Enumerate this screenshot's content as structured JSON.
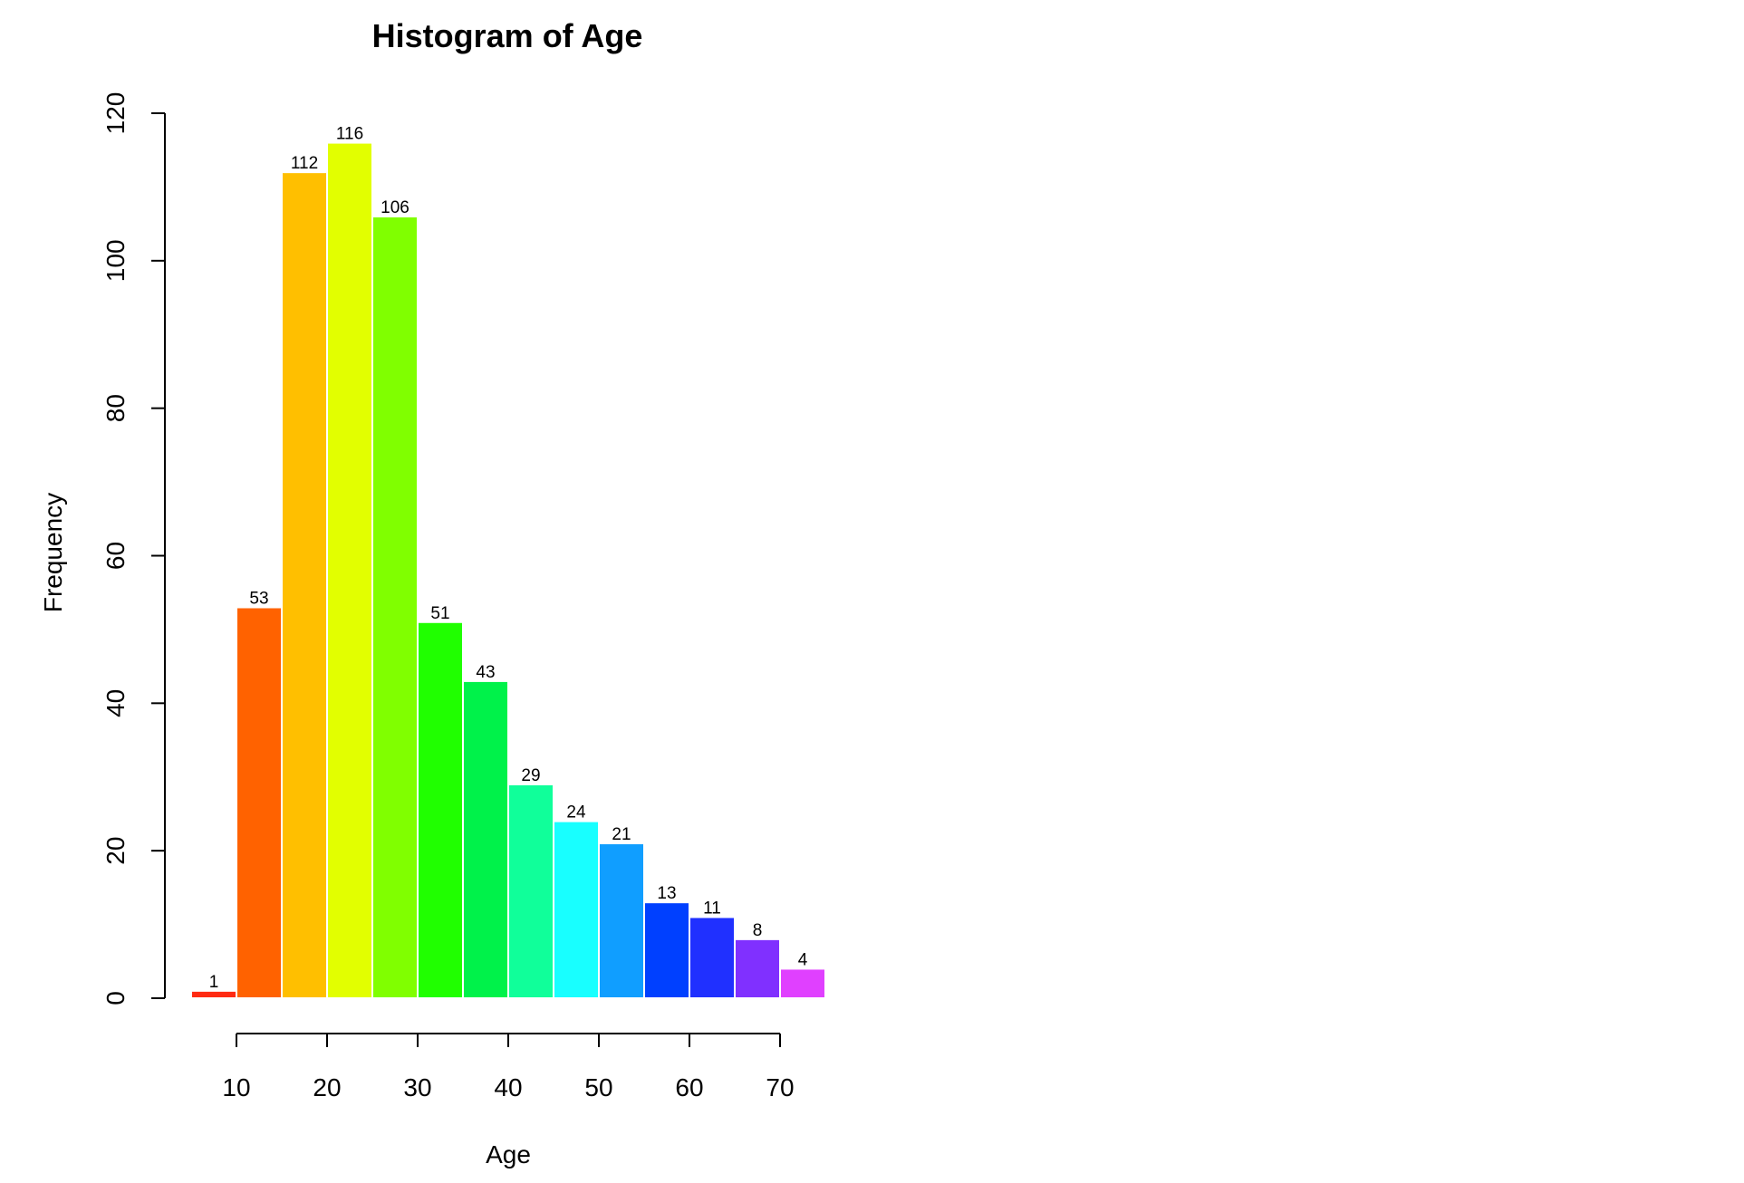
{
  "chart_data": {
    "type": "bar",
    "title": "Histogram of Age",
    "xlabel": "Age",
    "ylabel": "Frequency",
    "bin_edges": [
      5,
      10,
      15,
      20,
      25,
      30,
      35,
      40,
      45,
      50,
      55,
      60,
      65,
      70,
      75
    ],
    "values": [
      1,
      53,
      112,
      116,
      106,
      51,
      43,
      29,
      24,
      21,
      13,
      11,
      8,
      4
    ],
    "colors": [
      "#FF2A12",
      "#FF6200",
      "#FFBF00",
      "#E2FF00",
      "#80FF00",
      "#20FF00",
      "#00F24A",
      "#10FF9A",
      "#18FFFF",
      "#109EFF",
      "#0040FF",
      "#2030FF",
      "#8030FF",
      "#E040FF"
    ],
    "xticks": [
      10,
      20,
      30,
      40,
      50,
      60,
      70
    ],
    "yticks": [
      0,
      20,
      40,
      60,
      80,
      100,
      120
    ],
    "xlim": [
      5,
      75
    ],
    "ylim": [
      0,
      120
    ],
    "grid": false,
    "legend": "none"
  }
}
